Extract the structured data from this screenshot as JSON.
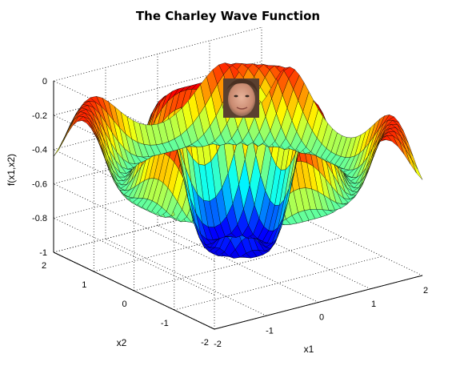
{
  "chart_data": {
    "type": "surface",
    "title": "The Charley Wave Function",
    "xlabel": "x1",
    "ylabel": "x2",
    "zlabel": "f(x1,x2)",
    "xlim": [
      -2,
      2
    ],
    "ylim": [
      -2,
      2
    ],
    "zlim": [
      -1,
      0
    ],
    "x_ticks": [
      "-2",
      "-1",
      "0",
      "1",
      "2"
    ],
    "y_ticks": [
      "-2",
      "-1",
      "0",
      "1",
      "2"
    ],
    "z_ticks": [
      "-1",
      "-0.8",
      "-0.6",
      "-0.4",
      "-0.2",
      "0"
    ],
    "colormap": "jet",
    "grid": true,
    "center_overlay": "face-photo"
  }
}
